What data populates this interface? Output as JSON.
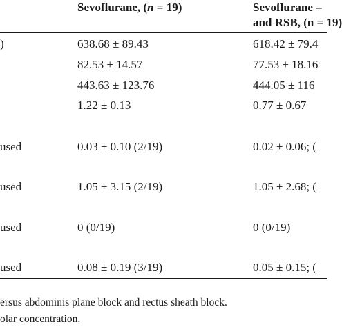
{
  "table": {
    "header": {
      "col2_pre": "Sevoflurane, (",
      "col2_n": "n",
      "col2_post": " = 19)",
      "col3_line1": "Sevoflurane –",
      "col3_line2": "and RSB, (n = 19)"
    },
    "rows": [
      {
        "label": ")",
        "col2": "638.68 ± 89.43",
        "col3": "618.42 ± 79.4"
      },
      {
        "label": "",
        "col2": "82.53 ± 14.57",
        "col3": "77.53 ± 18.16"
      },
      {
        "label": "",
        "col2": "443.63 ± 123.76",
        "col3": "444.05 ± 116"
      },
      {
        "label": "",
        "col2": "1.22 ± 0.13",
        "col3": "0.77 ± 0.67"
      },
      {
        "label": "used",
        "col2": "0.03 ± 0.10 (2/19)",
        "col3": "0.02 ± 0.06; ("
      },
      {
        "label": "used",
        "col2": "1.05 ± 3.15 (2/19)",
        "col3": "1.05 ± 2.68; ("
      },
      {
        "label": "used",
        "col2": "0 (0/19)",
        "col3": "0 (0/19)"
      },
      {
        "label": "used",
        "col2": "0.08 ± 0.19 (3/19)",
        "col3": "0.05 ± 0.15; ("
      }
    ]
  },
  "footnotes": [
    "ersus abdominis plane block and rectus sheath block.",
    "olar concentration."
  ]
}
